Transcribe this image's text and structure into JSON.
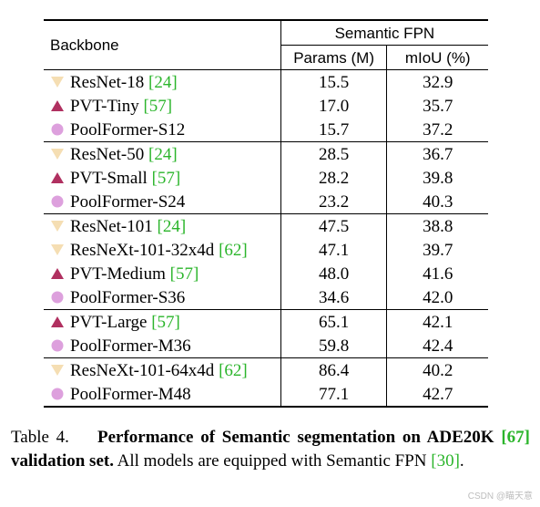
{
  "table": {
    "header": {
      "backbone": "Backbone",
      "group": "Semantic FPN",
      "params": "Params (M)",
      "miou": "mIoU (%)"
    },
    "groups": [
      [
        {
          "marker": "triangle-down",
          "name": "ResNet-18",
          "ref": "24",
          "params": "15.5",
          "miou": "32.9"
        },
        {
          "marker": "triangle-up",
          "name": "PVT-Tiny",
          "ref": "57",
          "params": "17.0",
          "miou": "35.7"
        },
        {
          "marker": "circle",
          "name": "PoolFormer-S12",
          "ref": "",
          "params": "15.7",
          "miou": "37.2"
        }
      ],
      [
        {
          "marker": "triangle-down",
          "name": "ResNet-50",
          "ref": "24",
          "params": "28.5",
          "miou": "36.7"
        },
        {
          "marker": "triangle-up",
          "name": "PVT-Small",
          "ref": "57",
          "params": "28.2",
          "miou": "39.8"
        },
        {
          "marker": "circle",
          "name": "PoolFormer-S24",
          "ref": "",
          "params": "23.2",
          "miou": "40.3"
        }
      ],
      [
        {
          "marker": "triangle-down",
          "name": "ResNet-101",
          "ref": "24",
          "params": "47.5",
          "miou": "38.8"
        },
        {
          "marker": "triangle-down",
          "name": "ResNeXt-101-32x4d",
          "ref": "62",
          "params": "47.1",
          "miou": "39.7"
        },
        {
          "marker": "triangle-up",
          "name": "PVT-Medium",
          "ref": "57",
          "params": "48.0",
          "miou": "41.6"
        },
        {
          "marker": "circle",
          "name": "PoolFormer-S36",
          "ref": "",
          "params": "34.6",
          "miou": "42.0"
        }
      ],
      [
        {
          "marker": "triangle-up",
          "name": "PVT-Large",
          "ref": "57",
          "params": "65.1",
          "miou": "42.1"
        },
        {
          "marker": "circle",
          "name": "PoolFormer-M36",
          "ref": "",
          "params": "59.8",
          "miou": "42.4"
        }
      ],
      [
        {
          "marker": "triangle-down",
          "name": "ResNeXt-101-64x4d",
          "ref": "62",
          "params": "86.4",
          "miou": "40.2"
        },
        {
          "marker": "circle",
          "name": "PoolFormer-M48",
          "ref": "",
          "params": "77.1",
          "miou": "42.7"
        }
      ]
    ]
  },
  "caption": {
    "label": "Table 4.",
    "title_part1": "Performance of Semantic segmentation on ADE20K",
    "title_ref": "67",
    "title_part2": "validation set.",
    "body_part1": "All models are equipped with Semantic FPN",
    "body_ref": "30",
    "body_part2": "."
  },
  "watermark": "CSDN @瞄天意",
  "colors": {
    "triangle_down": "#f5deb3",
    "triangle_up": "#b03060",
    "circle": "#dda0dd",
    "ref": "#2bb52b"
  }
}
